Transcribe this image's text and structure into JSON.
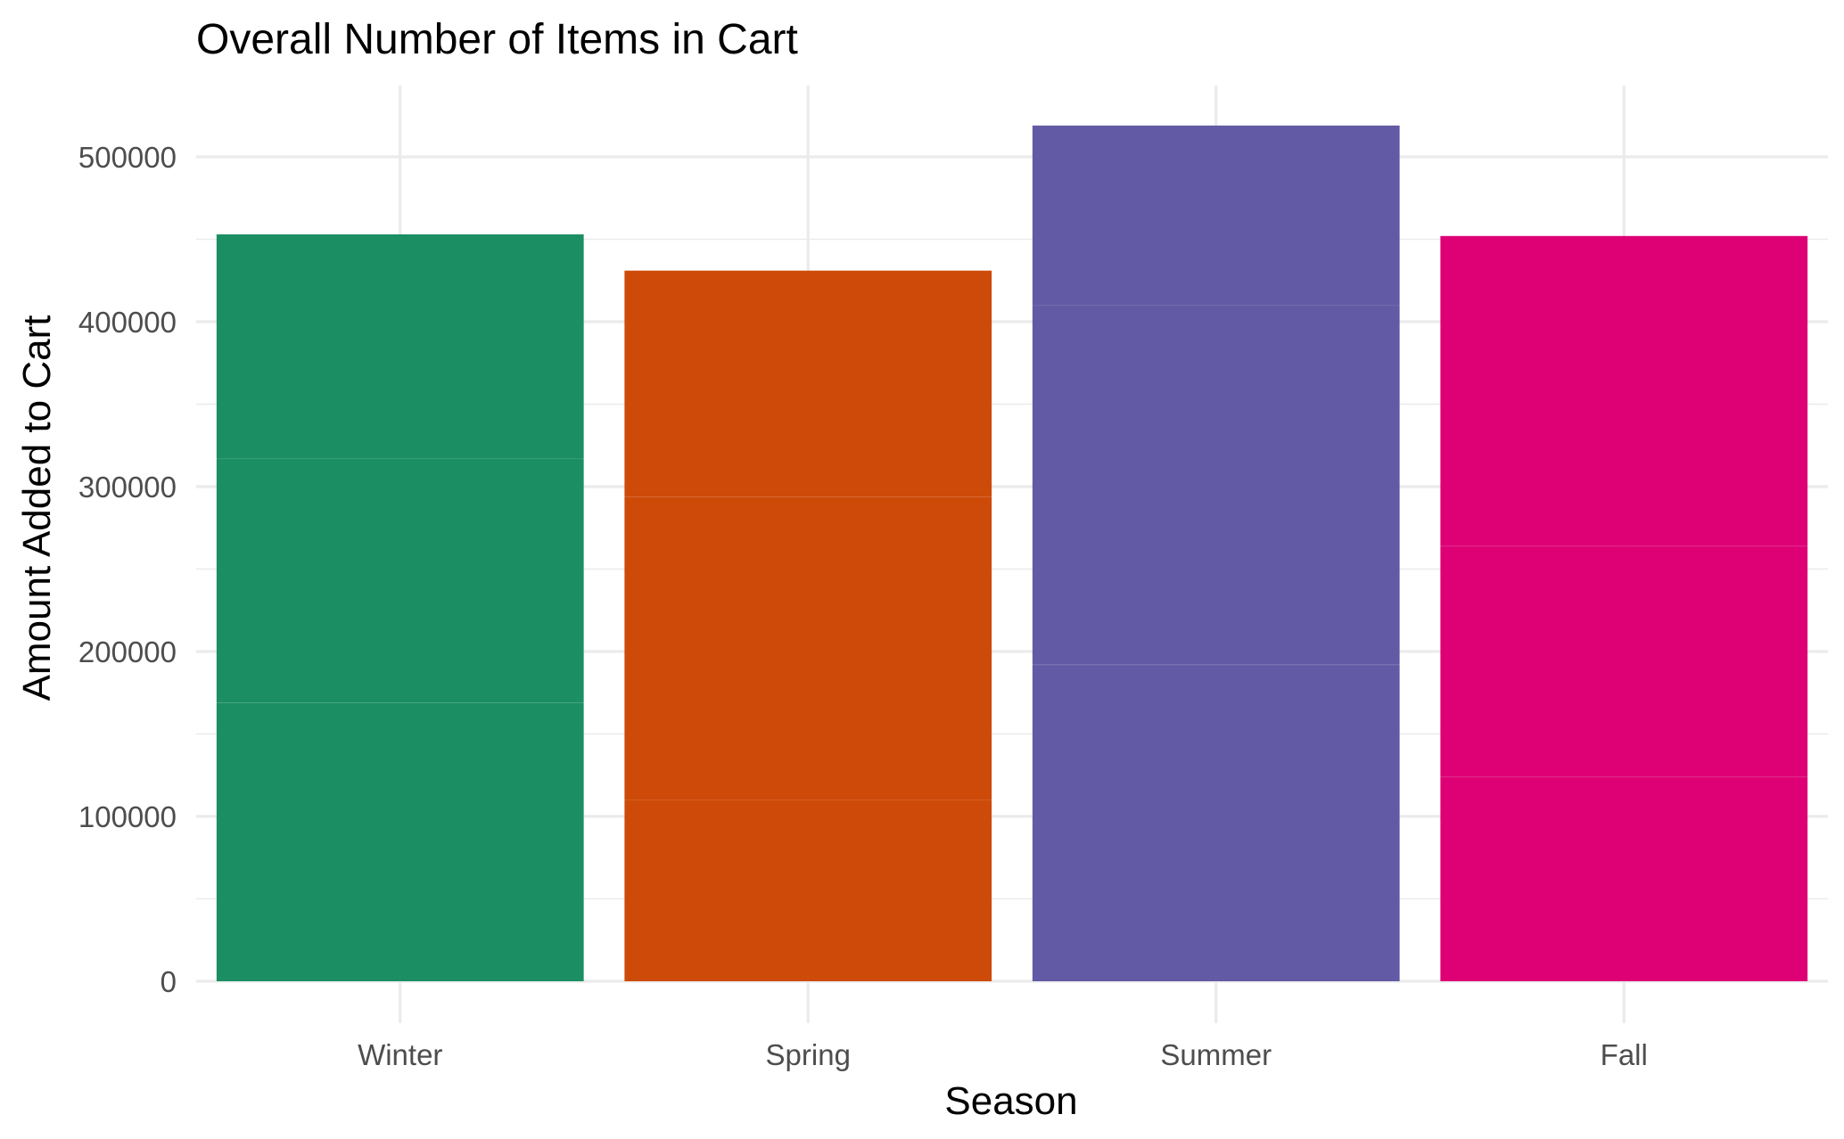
{
  "chart_data": {
    "type": "bar",
    "stacked": true,
    "title": "Overall Number of Items in Cart",
    "xlabel": "Season",
    "ylabel": "Amount Added to Cart",
    "categories": [
      "Winter",
      "Spring",
      "Summer",
      "Fall"
    ],
    "colors": [
      "#1b8e64",
      "#cd4a08",
      "#625aa4",
      "#de0175"
    ],
    "segments": [
      [
        169000,
        148000,
        136000
      ],
      [
        110000,
        184000,
        137000
      ],
      [
        192000,
        218000,
        109000
      ],
      [
        124000,
        140000,
        188000
      ]
    ],
    "values": [
      453000,
      431000,
      519000,
      452000
    ],
    "ylim": [
      0,
      540000
    ],
    "yticks": [
      0,
      100000,
      200000,
      300000,
      400000,
      500000
    ],
    "ytick_labels": [
      "0",
      "100000",
      "200000",
      "300000",
      "400000",
      "500000"
    ],
    "grid": true,
    "legend": "none"
  }
}
